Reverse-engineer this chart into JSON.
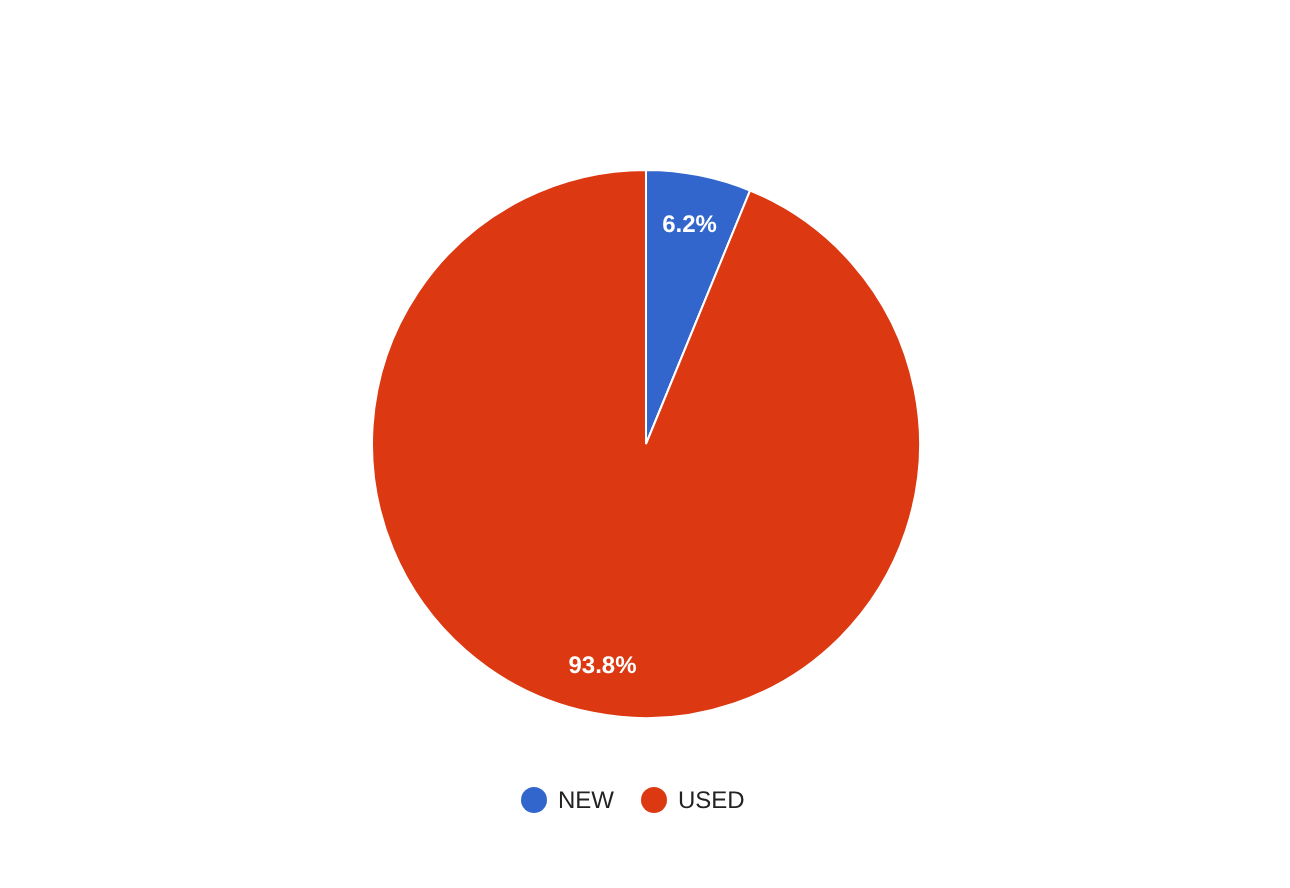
{
  "chart_data": {
    "type": "pie",
    "categories": [
      "NEW",
      "USED"
    ],
    "values": [
      6.2,
      93.8
    ],
    "colors": [
      "#3366cc",
      "#dc3912"
    ],
    "value_labels": [
      "6.2%",
      "93.8%"
    ],
    "legend": "bottom"
  }
}
